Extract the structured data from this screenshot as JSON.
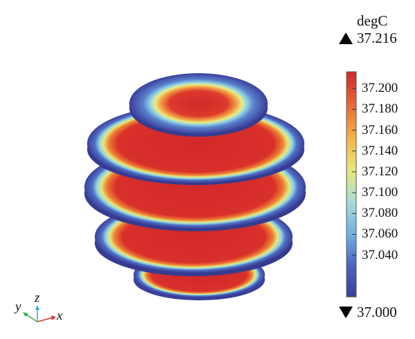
{
  "chart_data": {
    "type": "heatmap",
    "title": "",
    "colorbar": {
      "unit": "degC",
      "max_label": "37.216",
      "min_label": "37.000",
      "range": [
        37.0,
        37.216
      ],
      "ticks": [
        "37.200",
        "37.180",
        "37.160",
        "37.140",
        "37.120",
        "37.100",
        "37.080",
        "37.060",
        "37.040"
      ],
      "tick_values": [
        37.2,
        37.18,
        37.16,
        37.14,
        37.12,
        37.1,
        37.08,
        37.06,
        37.04
      ],
      "colormap": [
        "#3a3f99",
        "#4a64c0",
        "#6fb2e0",
        "#a6dcd8",
        "#e6e87a",
        "#f5b749",
        "#ea6a33",
        "#d2282a"
      ]
    },
    "slices": [
      {
        "name": "slice-top"
      },
      {
        "name": "slice-upper"
      },
      {
        "name": "slice-middle"
      },
      {
        "name": "slice-lower"
      },
      {
        "name": "slice-bottom"
      }
    ]
  },
  "axes_triad": {
    "x": "x",
    "y": "y",
    "z": "z"
  }
}
